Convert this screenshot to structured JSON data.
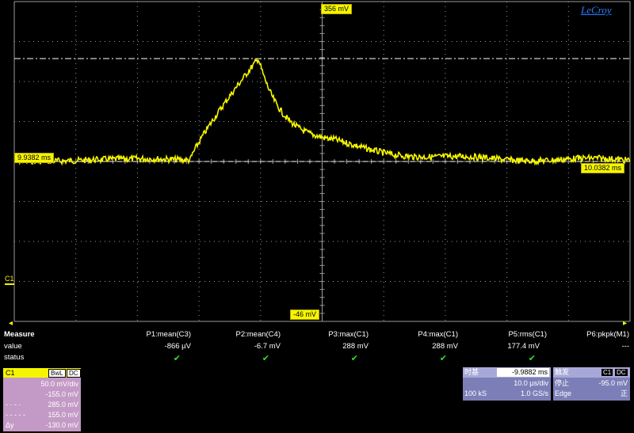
{
  "brand": "LeCroy",
  "scope": {
    "top_label": "356 mV",
    "bottom_label": "-46 mV",
    "left_time_label": "9.9382 ms",
    "right_time_label": "10.0382 ms",
    "channel_marker": "C1",
    "trace_color": "#f5f500",
    "grid_color": "#9a9a9a"
  },
  "measure": {
    "heading": "Measure",
    "row_labels": [
      "value",
      "status"
    ],
    "params": [
      {
        "name": "P1:mean(C3)",
        "value": "-866 µV",
        "status": "ok"
      },
      {
        "name": "P2:mean(C4)",
        "value": "-6.7 mV",
        "status": "ok"
      },
      {
        "name": "P3:max(C1)",
        "value": "288 mV",
        "status": "ok"
      },
      {
        "name": "P4:max(C1)",
        "value": "288 mV",
        "status": "ok"
      },
      {
        "name": "P5:rms(C1)",
        "value": "177.4 mV",
        "status": "ok"
      },
      {
        "name": "P6:pkpk(M1)",
        "value": "---",
        "status": ""
      }
    ],
    "check_symbol": "✔"
  },
  "channel_box": {
    "name": "C1",
    "tags": [
      "BwL",
      "DC"
    ],
    "lines": [
      {
        "key": "",
        "value": "50.0 mV/div"
      },
      {
        "key": "",
        "value": "-155.0 mV"
      },
      {
        "key": "- · - ·",
        "value": "285.0 mV"
      },
      {
        "key": "- - - - -",
        "value": "155.0 mV"
      },
      {
        "key": "Δy",
        "value": "-130.0 mV"
      }
    ]
  },
  "timebase_box": {
    "title": "时基",
    "delay": "-9.9882 ms",
    "time_per_div": "10.0 µs/div",
    "samples": "100 kS",
    "sample_rate": "1.0 GS/s"
  },
  "trigger_box": {
    "title": "触发",
    "tags": [
      "C1",
      "DC"
    ],
    "state": "停止",
    "level": "-95.0 mV",
    "type": "Edge",
    "slope": "正"
  }
}
